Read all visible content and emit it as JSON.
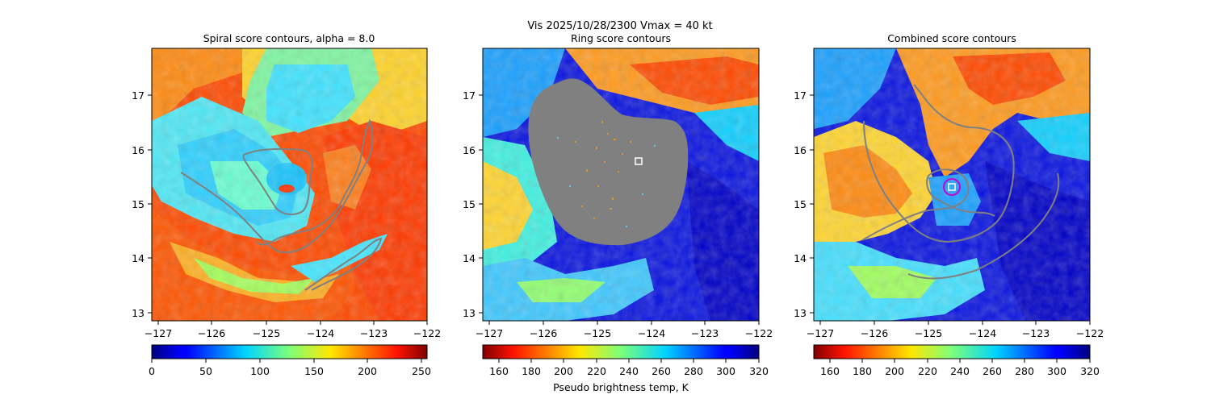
{
  "figure": {
    "suptitle_line1": "Vis  2025/10/28/2300    Vmax = 40 kt"
  },
  "chart_data": [
    {
      "type": "heatmap",
      "title": "Spiral score contours, alpha =  8.0",
      "xlim": [
        -127.2,
        -122.0
      ],
      "ylim": [
        12.85,
        17.85
      ],
      "xticks": [
        -127,
        -126,
        -125,
        -124,
        -123,
        -122
      ],
      "yticks": [
        13,
        14,
        15,
        16,
        17
      ],
      "colorbar": {
        "cmap": "jet",
        "range": [
          0,
          255
        ],
        "ticks": [
          0,
          50,
          100,
          150,
          200,
          250
        ]
      },
      "contour_color": "#808080"
    },
    {
      "type": "heatmap",
      "title": "Ring score contours",
      "xlim": [
        -127.2,
        -122.0
      ],
      "ylim": [
        12.85,
        17.85
      ],
      "xticks": [
        -127,
        -126,
        -125,
        -124,
        -123,
        -122
      ],
      "yticks": [
        13,
        14,
        15,
        16,
        17
      ],
      "colorbar": {
        "cmap": "jet_r",
        "range": [
          150,
          320
        ],
        "ticks": [
          160,
          180,
          200,
          220,
          240,
          260,
          280,
          300,
          320
        ],
        "label": "Pseudo brightness temp, K"
      },
      "mask_color": "#808080",
      "marker": {
        "lon": -124.25,
        "lat": 15.78,
        "shape": "square",
        "color": "#ffffff"
      }
    },
    {
      "type": "heatmap",
      "title": "Combined score contours",
      "xlim": [
        -127.2,
        -122.0
      ],
      "ylim": [
        12.85,
        17.85
      ],
      "xticks": [
        -127,
        -126,
        -125,
        -124,
        -123,
        -122
      ],
      "yticks": [
        13,
        14,
        15,
        16,
        17
      ],
      "colorbar": {
        "cmap": "jet_r",
        "range": [
          150,
          320
        ],
        "ticks": [
          160,
          180,
          200,
          220,
          240,
          260,
          280,
          300,
          320
        ]
      },
      "contour_color": "#808080",
      "center": {
        "lon": -124.6,
        "lat": 15.32,
        "ring_color": "#cc00cc",
        "marker_color": "#ffffff"
      }
    }
  ]
}
